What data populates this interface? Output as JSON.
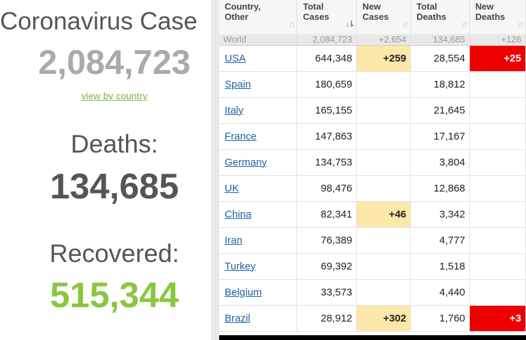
{
  "left": {
    "title": "Coronavirus Case",
    "cases": "2,084,723",
    "view_link": "view by country",
    "deaths_label": "Deaths:",
    "deaths": "134,685",
    "recovered_label": "Recovered:",
    "recovered": "515,344"
  },
  "table": {
    "headers": {
      "country_l1": "Country,",
      "country_l2": "Other",
      "total_cases_l1": "Total",
      "total_cases_l2": "Cases",
      "new_cases_l1": "New",
      "new_cases_l2": "Cases",
      "total_deaths_l1": "Total",
      "total_deaths_l2": "Deaths",
      "new_deaths_l1": "New",
      "new_deaths_l2": "Deaths"
    },
    "sort_icon": "sort-arrows-icon",
    "world_row": {
      "country": "World",
      "total_cases": "2,084,723",
      "new_cases": "+2,654",
      "total_deaths": "134,685",
      "new_deaths": "+126"
    },
    "rows": [
      {
        "country": "USA",
        "total_cases": "644,348",
        "new_cases": "+259",
        "total_deaths": "28,554",
        "new_deaths": "+25"
      },
      {
        "country": "Spain",
        "total_cases": "180,659",
        "new_cases": "",
        "total_deaths": "18,812",
        "new_deaths": ""
      },
      {
        "country": "Italy",
        "total_cases": "165,155",
        "new_cases": "",
        "total_deaths": "21,645",
        "new_deaths": ""
      },
      {
        "country": "France",
        "total_cases": "147,863",
        "new_cases": "",
        "total_deaths": "17,167",
        "new_deaths": ""
      },
      {
        "country": "Germany",
        "total_cases": "134,753",
        "new_cases": "",
        "total_deaths": "3,804",
        "new_deaths": ""
      },
      {
        "country": "UK",
        "total_cases": "98,476",
        "new_cases": "",
        "total_deaths": "12,868",
        "new_deaths": ""
      },
      {
        "country": "China",
        "total_cases": "82,341",
        "new_cases": "+46",
        "total_deaths": "3,342",
        "new_deaths": ""
      },
      {
        "country": "Iran",
        "total_cases": "76,389",
        "new_cases": "",
        "total_deaths": "4,777",
        "new_deaths": ""
      },
      {
        "country": "Turkey",
        "total_cases": "69,392",
        "new_cases": "",
        "total_deaths": "1,518",
        "new_deaths": ""
      },
      {
        "country": "Belgium",
        "total_cases": "33,573",
        "new_cases": "",
        "total_deaths": "4,440",
        "new_deaths": ""
      },
      {
        "country": "Brazil",
        "total_cases": "28,912",
        "new_cases": "+302",
        "total_deaths": "1,760",
        "new_deaths": "+3"
      }
    ]
  },
  "colors": {
    "link": "#1e5fa8",
    "new_cases_highlight": "#fce8a8",
    "new_deaths_highlight": "#ee0000",
    "recovered": "#8ac640"
  }
}
